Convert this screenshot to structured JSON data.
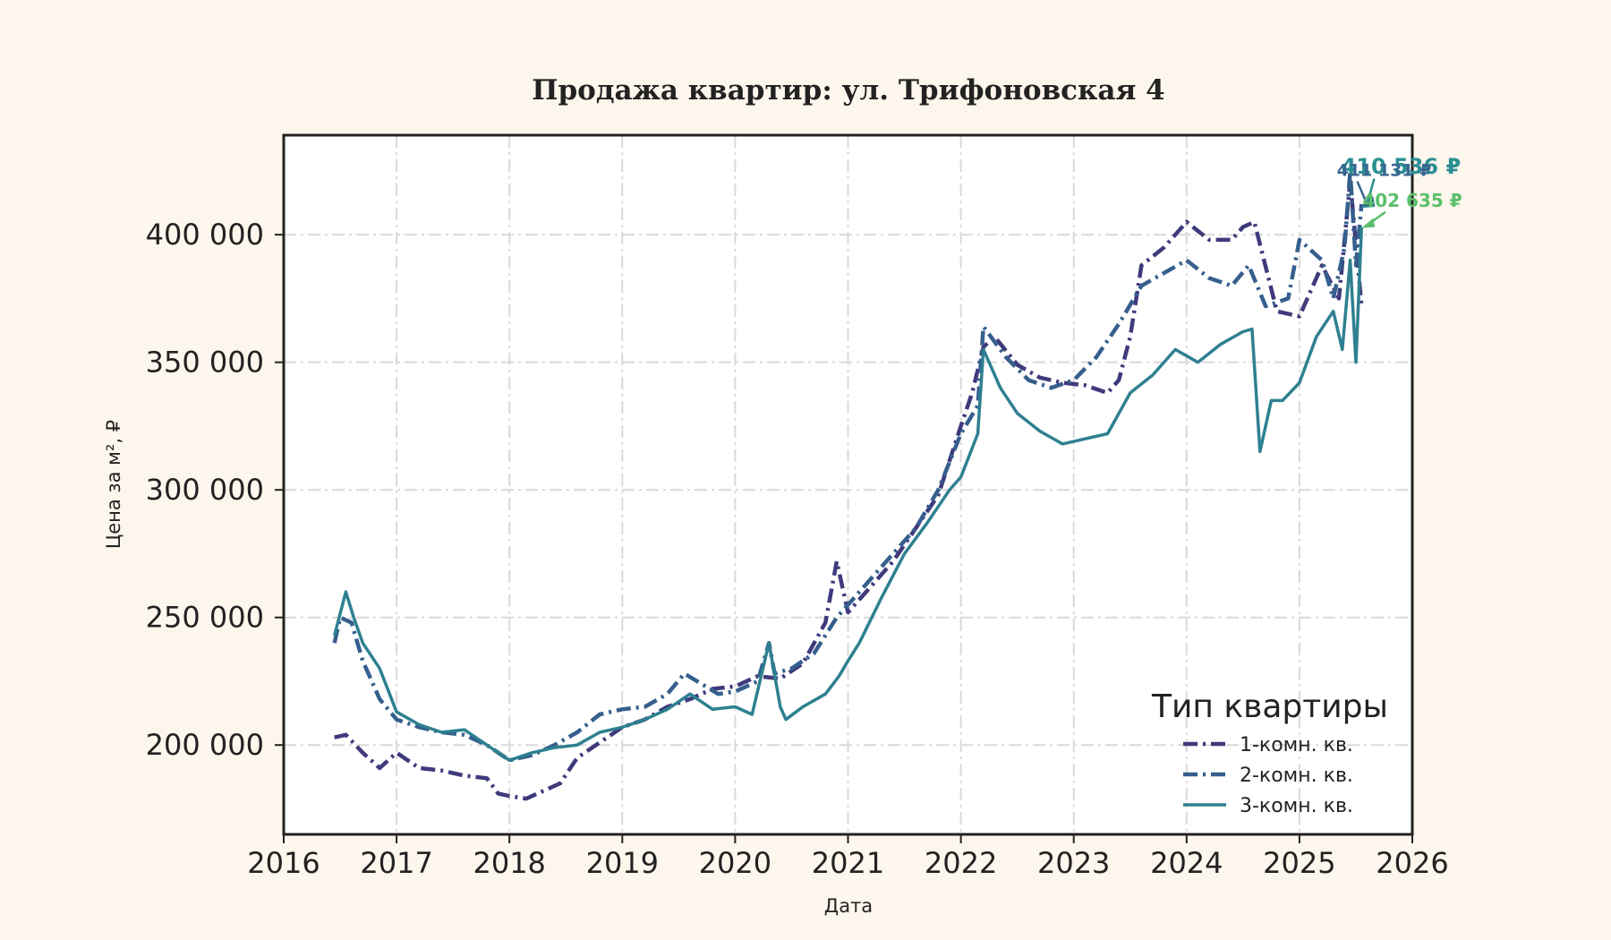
{
  "chart_data": {
    "type": "line",
    "title": "Продажа квартир: ул. Трифоновская 4",
    "xlabel": "Дата",
    "ylabel": "Цена за м², ₽",
    "xlim": [
      2016,
      2026
    ],
    "ylim": [
      165000,
      439000
    ],
    "x_ticks": [
      "2016",
      "2017",
      "2018",
      "2019",
      "2020",
      "2021",
      "2022",
      "2023",
      "2024",
      "2025",
      "2026"
    ],
    "y_ticks": [
      {
        "value": 200000,
        "label": "200 000"
      },
      {
        "value": 250000,
        "label": "250 000"
      },
      {
        "value": 300000,
        "label": "300 000"
      },
      {
        "value": 350000,
        "label": "350 000"
      },
      {
        "value": 400000,
        "label": "400 000"
      }
    ],
    "grid": true,
    "legend": {
      "title": "Тип квартиры",
      "position": "lower-right"
    },
    "series": [
      {
        "name": "1-комн. кв.",
        "color": "#3f3a7c",
        "style": "dashdot",
        "x": [
          2016.45,
          2016.55,
          2016.7,
          2016.85,
          2017.0,
          2017.2,
          2017.4,
          2017.6,
          2017.8,
          2017.9,
          2018.0,
          2018.15,
          2018.3,
          2018.45,
          2018.6,
          2018.8,
          2019.0,
          2019.2,
          2019.4,
          2019.6,
          2019.8,
          2020.0,
          2020.2,
          2020.4,
          2020.6,
          2020.8,
          2020.9,
          2021.0,
          2021.2,
          2021.4,
          2021.6,
          2021.8,
          2022.0,
          2022.1,
          2022.2,
          2022.3,
          2022.5,
          2022.7,
          2022.9,
          2023.1,
          2023.3,
          2023.4,
          2023.5,
          2023.6,
          2023.8,
          2024.0,
          2024.2,
          2024.4,
          2024.5,
          2024.6,
          2024.8,
          2025.0,
          2025.2,
          2025.35,
          2025.45,
          2025.55
        ],
        "y": [
          203000,
          204000,
          197000,
          191000,
          197000,
          191000,
          190000,
          188000,
          187000,
          181000,
          180000,
          179000,
          182000,
          185000,
          195000,
          201000,
          207000,
          210000,
          215000,
          218000,
          222000,
          223000,
          227000,
          226000,
          232000,
          248000,
          272000,
          252000,
          262000,
          272000,
          285000,
          298000,
          325000,
          338000,
          356000,
          360000,
          349000,
          344000,
          342000,
          341000,
          338000,
          343000,
          360000,
          388000,
          395000,
          405000,
          398000,
          398000,
          403000,
          405000,
          370000,
          368000,
          388000,
          375000,
          421000,
          372000
        ]
      },
      {
        "name": "2-комн. кв.",
        "color": "#355f8d",
        "style": "dashdot",
        "x": [
          2016.45,
          2016.5,
          2016.6,
          2016.7,
          2016.85,
          2017.0,
          2017.2,
          2017.4,
          2017.6,
          2017.8,
          2018.0,
          2018.2,
          2018.4,
          2018.6,
          2018.8,
          2019.0,
          2019.2,
          2019.4,
          2019.55,
          2019.7,
          2019.85,
          2020.0,
          2020.2,
          2020.3,
          2020.35,
          2020.5,
          2020.7,
          2020.9,
          2021.0,
          2021.2,
          2021.4,
          2021.6,
          2021.8,
          2022.0,
          2022.15,
          2022.2,
          2022.4,
          2022.6,
          2022.8,
          2023.0,
          2023.2,
          2023.4,
          2023.6,
          2023.8,
          2024.0,
          2024.2,
          2024.4,
          2024.55,
          2024.7,
          2024.9,
          2025.0,
          2025.2,
          2025.3,
          2025.4,
          2025.45,
          2025.5,
          2025.55
        ],
        "y": [
          240000,
          250000,
          248000,
          233000,
          218000,
          210000,
          207000,
          205000,
          204000,
          200000,
          194000,
          196000,
          200000,
          205000,
          212000,
          214000,
          215000,
          220000,
          228000,
          224000,
          220000,
          221000,
          225000,
          240000,
          228000,
          230000,
          236000,
          250000,
          255000,
          265000,
          275000,
          285000,
          300000,
          322000,
          333000,
          364000,
          352000,
          343000,
          340000,
          343000,
          352000,
          365000,
          380000,
          385000,
          390000,
          383000,
          380000,
          388000,
          372000,
          375000,
          398000,
          390000,
          375000,
          395000,
          425000,
          388000,
          412000
        ]
      },
      {
        "name": "3-комн. кв.",
        "color": "#2e8090",
        "style": "solid",
        "x": [
          2016.45,
          2016.55,
          2016.62,
          2016.7,
          2016.85,
          2017.0,
          2017.2,
          2017.4,
          2017.6,
          2017.8,
          2018.0,
          2018.2,
          2018.4,
          2018.6,
          2018.8,
          2019.0,
          2019.2,
          2019.4,
          2019.6,
          2019.8,
          2020.0,
          2020.15,
          2020.3,
          2020.4,
          2020.45,
          2020.6,
          2020.8,
          2020.92,
          2021.0,
          2021.1,
          2021.3,
          2021.5,
          2021.7,
          2021.9,
          2022.0,
          2022.15,
          2022.2,
          2022.35,
          2022.5,
          2022.7,
          2022.9,
          2023.1,
          2023.3,
          2023.5,
          2023.7,
          2023.9,
          2024.1,
          2024.3,
          2024.5,
          2024.58,
          2024.65,
          2024.75,
          2024.85,
          2025.0,
          2025.15,
          2025.3,
          2025.38,
          2025.45,
          2025.5,
          2025.55
        ],
        "y": [
          243000,
          260000,
          250000,
          240000,
          230000,
          213000,
          208000,
          205000,
          206000,
          200000,
          194000,
          197000,
          199000,
          200000,
          205000,
          207000,
          210000,
          214000,
          220000,
          214000,
          215000,
          212000,
          240000,
          215000,
          210000,
          215000,
          220000,
          227000,
          233000,
          240000,
          258000,
          275000,
          287000,
          300000,
          305000,
          322000,
          355000,
          340000,
          330000,
          323000,
          318000,
          320000,
          322000,
          338000,
          345000,
          355000,
          350000,
          357000,
          362000,
          363000,
          315000,
          335000,
          335000,
          342000,
          360000,
          370000,
          355000,
          390000,
          350000,
          403000
        ]
      }
    ],
    "annotations": [
      {
        "text": "410 536 ₽",
        "color": "#2a8f92",
        "size": 24,
        "target": [
          2025.55,
          410536
        ],
        "label_at": [
          2025.9,
          424000
        ]
      },
      {
        "text": "411 131 ₽",
        "color": "#386690",
        "size": 19,
        "target": [
          2025.55,
          411131
        ],
        "label_at": [
          2025.75,
          423000
        ]
      },
      {
        "text": "402 635 ₽",
        "color": "#5bbf6a",
        "size": 20,
        "target": [
          2025.55,
          402635
        ],
        "label_at": [
          2026.0,
          411000
        ]
      }
    ]
  }
}
